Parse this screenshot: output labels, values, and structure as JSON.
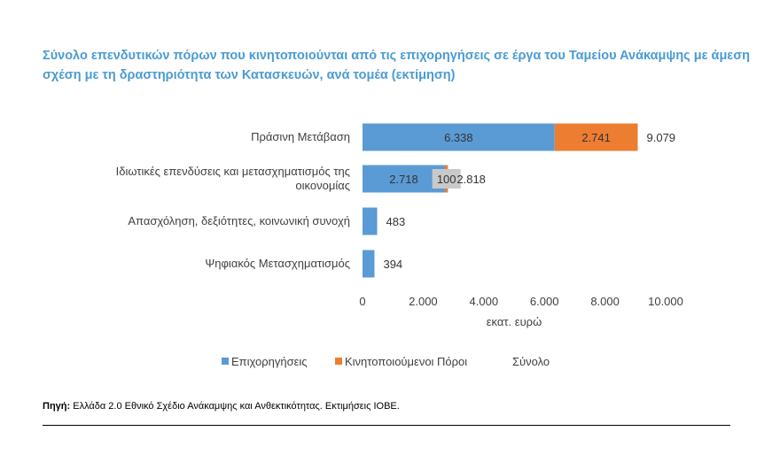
{
  "title": "Σύνολο επενδυτικών πόρων που κινητοποιούνται από τις επιχορηγήσεις σε έργα του Ταμείου Ανάκαμψης με άμεση σχέση με τη δραστηριότητα των Κατασκευών, ανά τομέα (εκτίμηση)",
  "source": {
    "label": "Πηγή:",
    "text": "Ελλάδα 2.0 Εθνικό Σχέδιο Ανάκαμψης και Ανθεκτικότητας. Εκτιμήσεις ΙΟΒΕ."
  },
  "chart_data": {
    "type": "bar",
    "orientation": "horizontal",
    "stacked": true,
    "categories": [
      [
        "Πράσινη Μετάβαση"
      ],
      [
        "Ιδιωτικές επενδύσεις και μετασχηματισμός της",
        "οικονομίας"
      ],
      [
        "Απασχόληση, δεξιότητες, κοινωνική συνοχή"
      ],
      [
        "Ψηφιακός Μετασχηματισμός"
      ]
    ],
    "series": [
      {
        "name": "Επιχορηγήσεις",
        "color": "#5b9bd5",
        "values": [
          6338,
          2718,
          483,
          394
        ],
        "labels": [
          "6.338",
          "2.718",
          "",
          ""
        ]
      },
      {
        "name": "Κινητοποιούμενοι Πόροι",
        "color": "#ed7d31",
        "values": [
          2741,
          100,
          0,
          0
        ],
        "labels": [
          "2.741",
          "100",
          "",
          ""
        ]
      }
    ],
    "totals": {
      "name": "Σύνολο",
      "values": [
        9079,
        2818,
        483,
        394
      ],
      "labels": [
        "9.079",
        "2.818",
        "483",
        "394"
      ]
    },
    "xlim": [
      0,
      10000
    ],
    "xticks": [
      0,
      2000,
      4000,
      6000,
      8000,
      10000
    ],
    "xtick_labels": [
      "0",
      "2.000",
      "4.000",
      "6.000",
      "8.000",
      "10.000"
    ],
    "xlabel": "εκατ. ευρώ",
    "legend_position": "bottom",
    "grid": false
  }
}
